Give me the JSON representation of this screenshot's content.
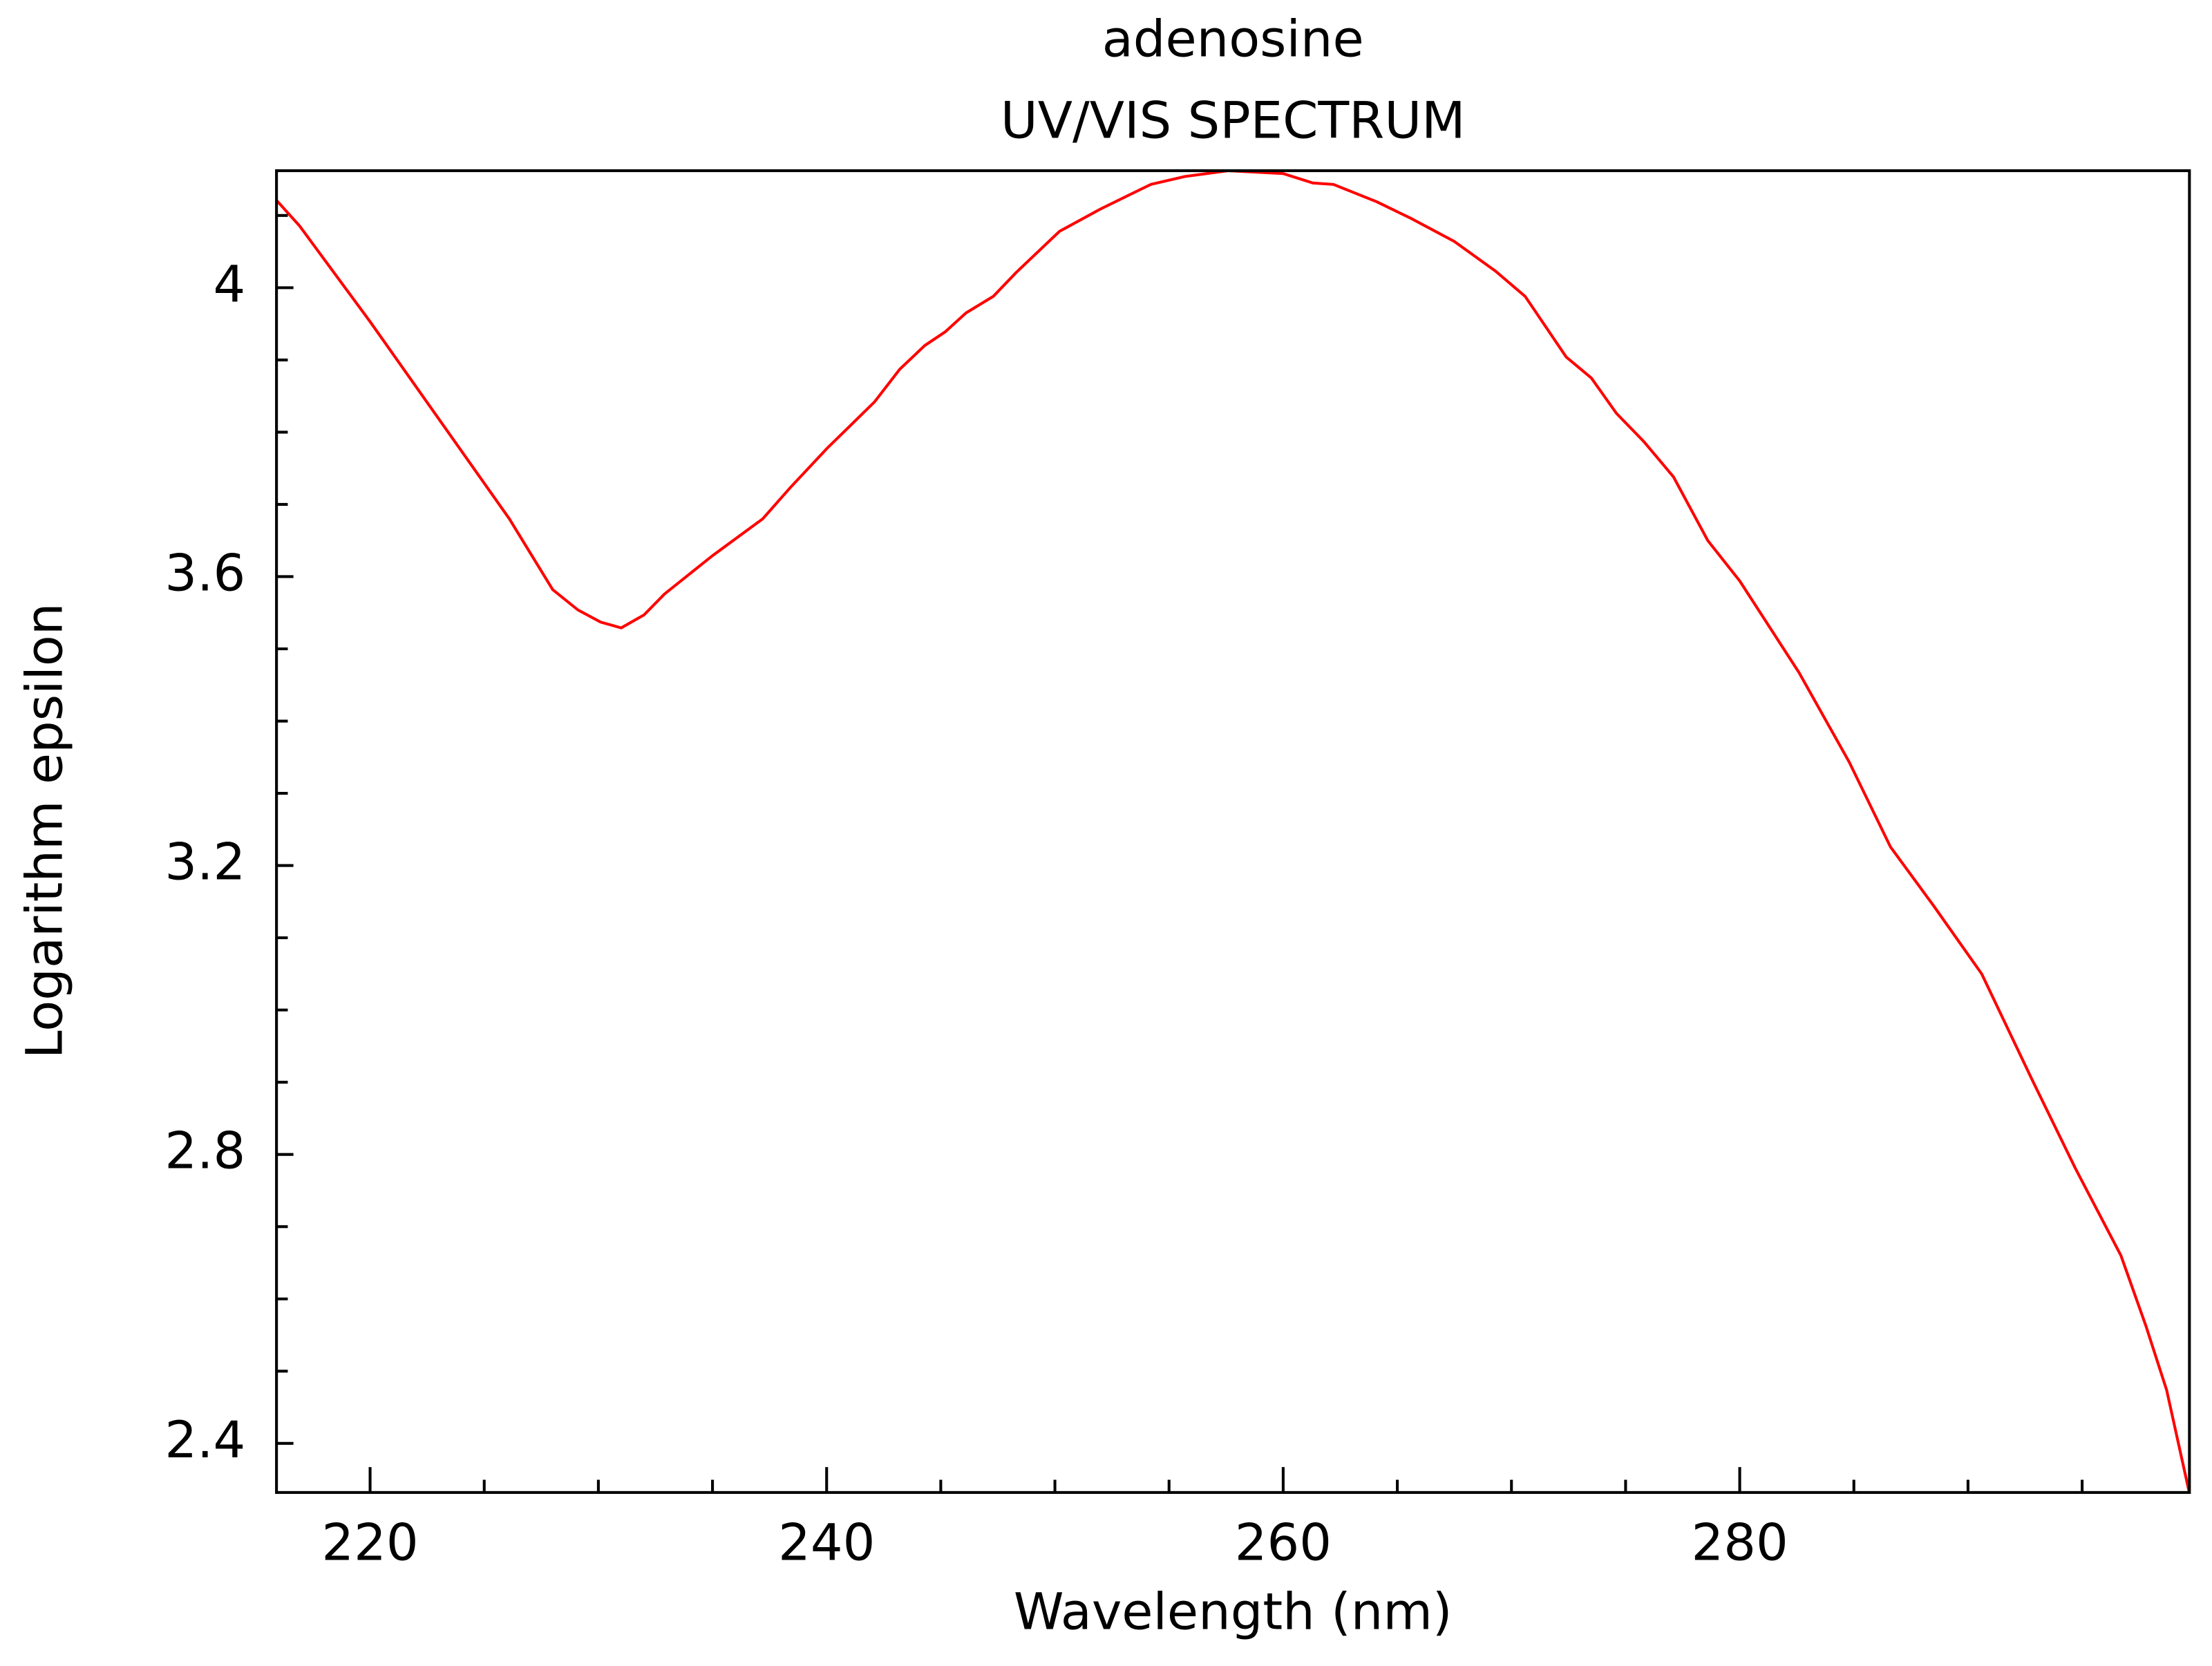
{
  "chart_data": {
    "type": "line",
    "title": "adenosine",
    "subtitle": "UV/VIS SPECTRUM",
    "x_label": "Wavelength (nm)",
    "y_label": "Logarithm epsilon",
    "xlim": [
      215.9,
      299.7
    ],
    "ylim": [
      2.332,
      4.162
    ],
    "xticks": [
      220,
      240,
      260,
      280
    ],
    "yticks": [
      2.4,
      2.8,
      3.2,
      3.6,
      4
    ],
    "xminorticks": [
      225,
      230,
      235,
      245,
      250,
      255,
      265,
      270,
      275,
      285,
      290,
      295
    ],
    "yminorticks": [
      2.5,
      2.6,
      2.7,
      2.9,
      3.0,
      3.1,
      3.3,
      3.4,
      3.5,
      3.7,
      3.8,
      3.9,
      4.1
    ],
    "series": [
      {
        "name": "adenosine",
        "color": "#ff0000",
        "x": [
          215.9,
          216.9,
          220,
          223.8,
          226.1,
          228.0,
          229.1,
          230.1,
          231.0,
          232.0,
          232.9,
          235.0,
          237.2,
          238.4,
          240.0,
          242.1,
          243.2,
          244.3,
          245.2,
          246.1,
          247.3,
          248.3,
          250.2,
          252.0,
          254.2,
          255.7,
          257.6,
          260.0,
          261.3,
          262.2,
          264.1,
          265.6,
          267.5,
          269.3,
          270.6,
          272.4,
          273.5,
          274.6,
          275.8,
          277.1,
          278.6,
          280.0,
          282.6,
          284.8,
          286.6,
          288.5,
          290.6,
          292.8,
          294.7,
          296.7,
          297.8,
          298.7,
          299.7
        ],
        "values": [
          4.121,
          4.086,
          3.953,
          3.783,
          3.68,
          3.582,
          3.554,
          3.537,
          3.529,
          3.547,
          3.576,
          3.629,
          3.68,
          3.723,
          3.777,
          3.842,
          3.887,
          3.92,
          3.939,
          3.965,
          3.988,
          4.021,
          4.078,
          4.109,
          4.143,
          4.154,
          4.162,
          4.158,
          4.145,
          4.143,
          4.119,
          4.096,
          4.064,
          4.023,
          3.988,
          3.904,
          3.875,
          3.826,
          3.787,
          3.738,
          3.65,
          3.594,
          3.467,
          3.343,
          3.226,
          3.144,
          3.05,
          2.904,
          2.781,
          2.66,
          2.562,
          2.474,
          2.331
        ]
      }
    ]
  }
}
